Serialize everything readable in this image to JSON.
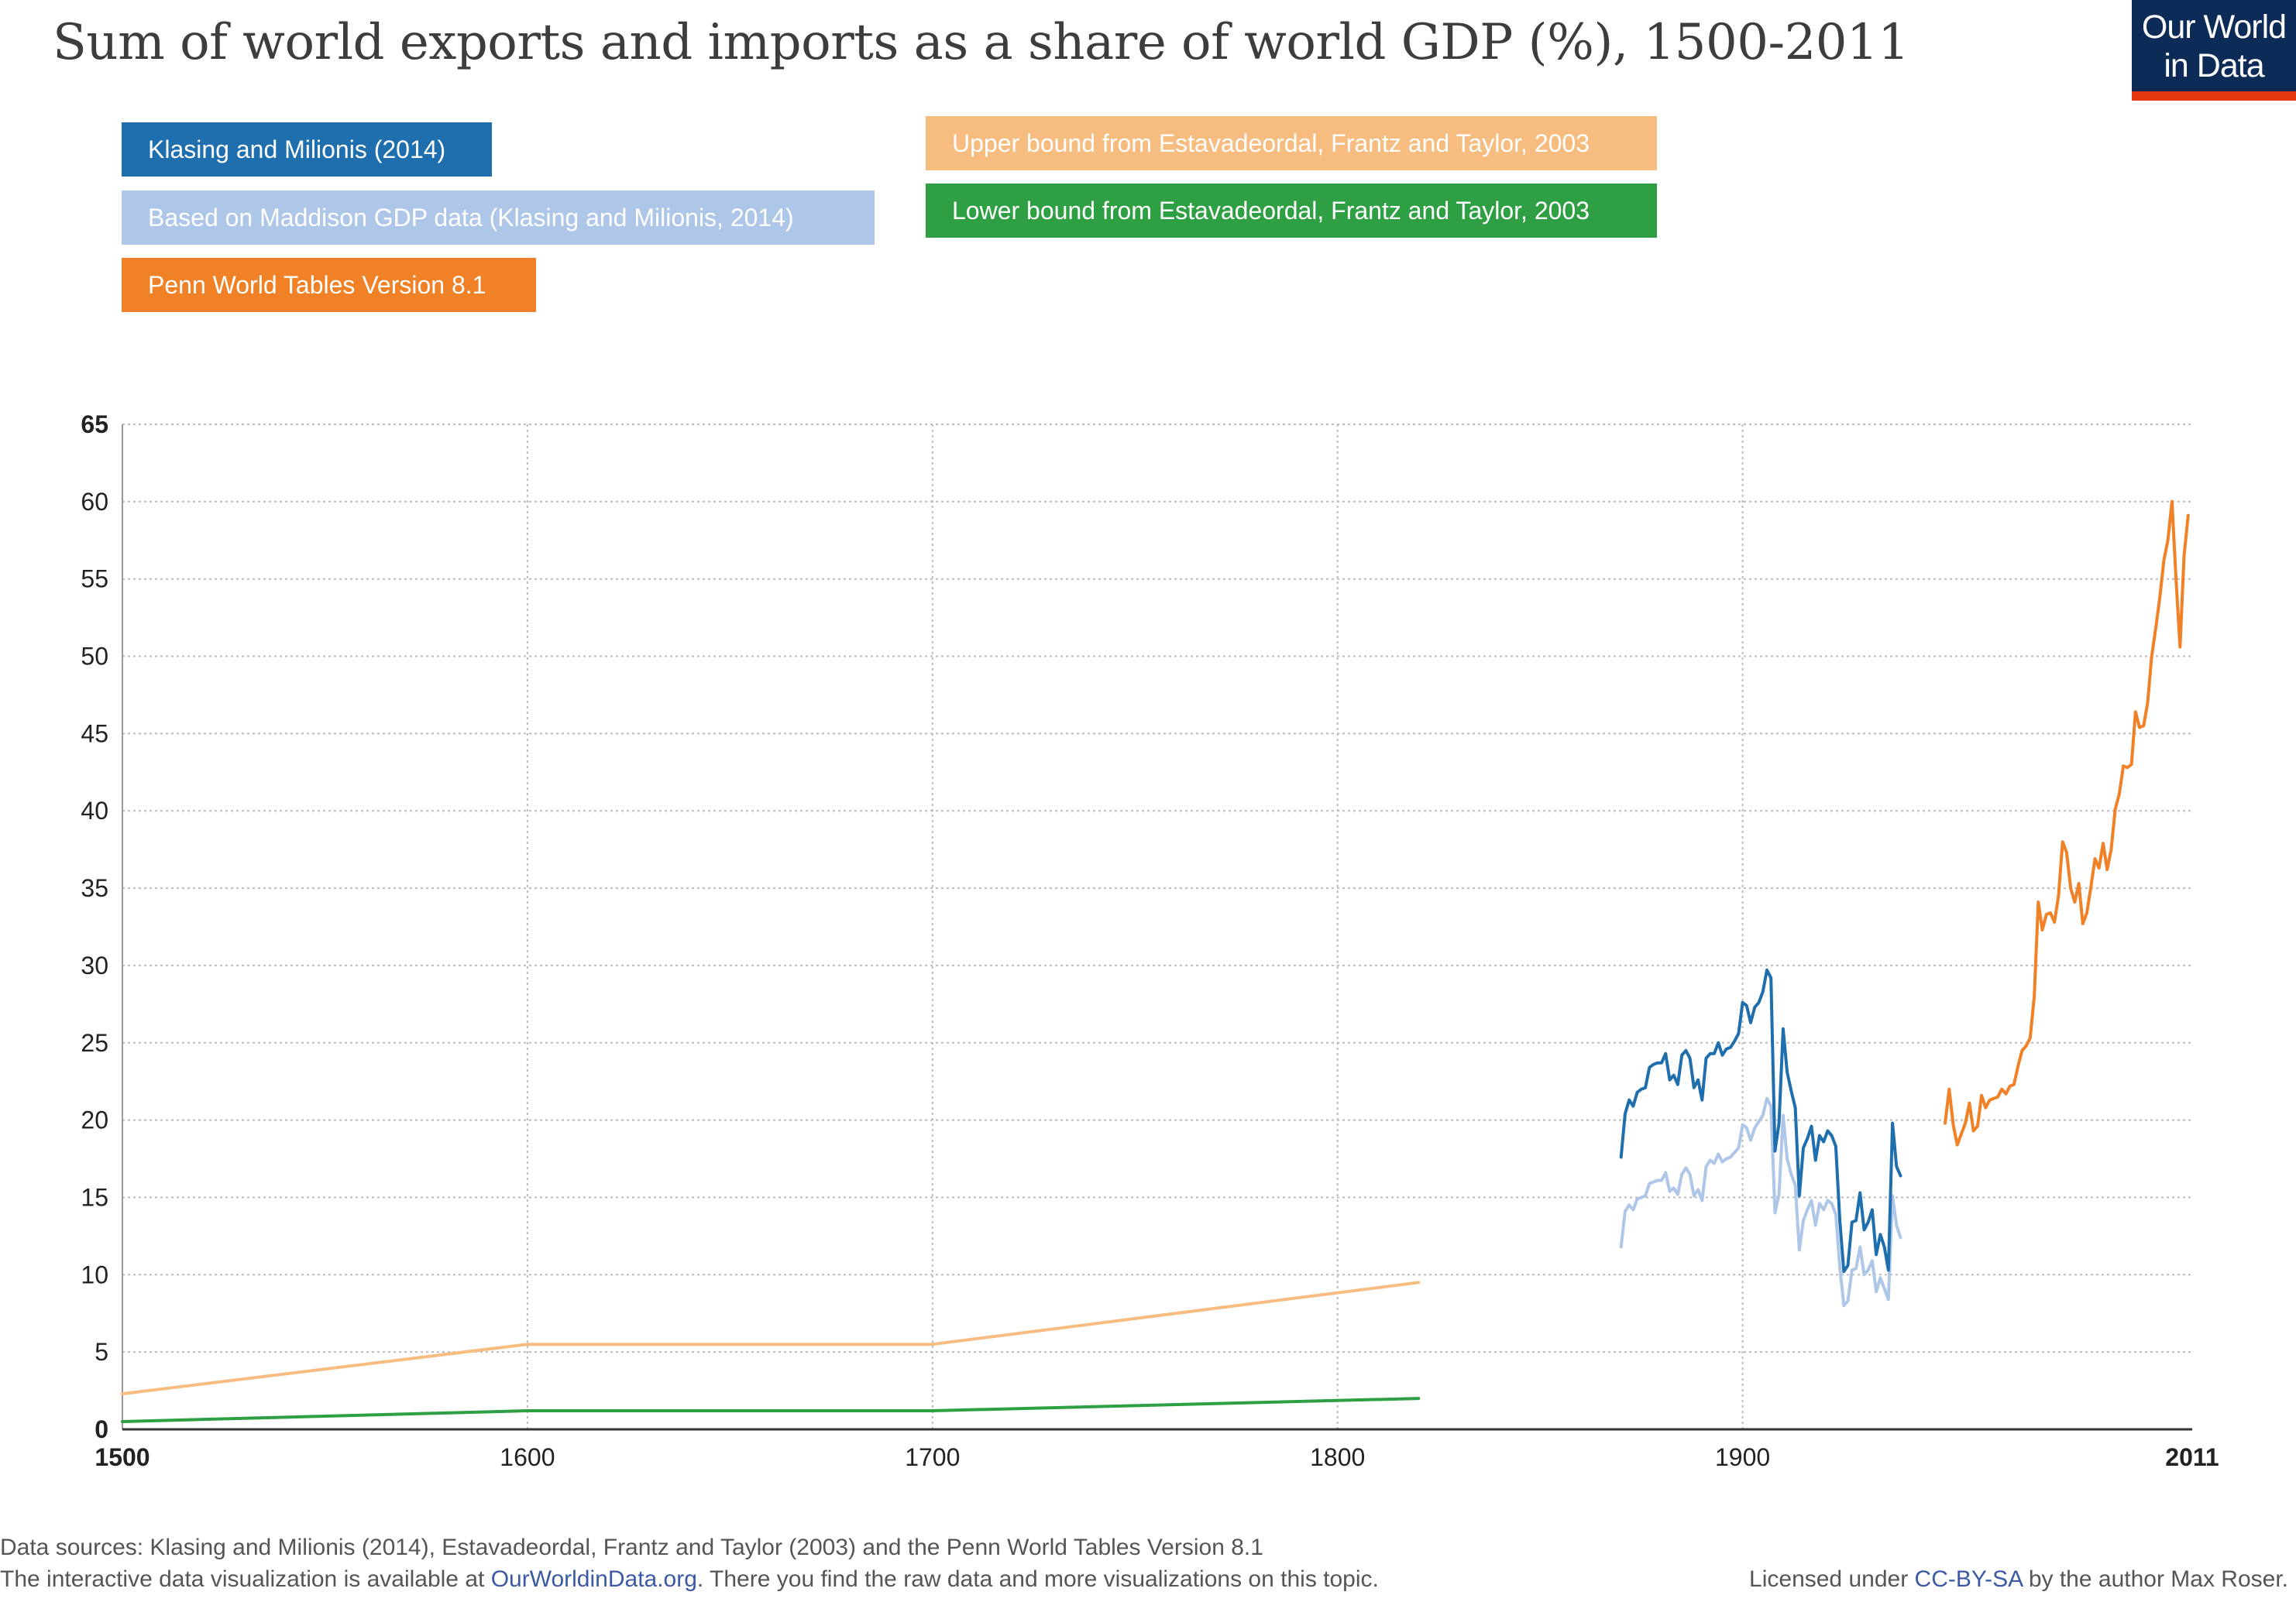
{
  "header": {
    "title": "Sum of world exports and imports  as a share of world GDP (%), 1500-2011",
    "logo_line1": "Our World",
    "logo_line2": "in Data"
  },
  "colors": {
    "klasing": "#1f6eae",
    "maddison": "#aec6e8",
    "penn": "#f08127",
    "upper": "#f7bd80",
    "lower": "#2ea043",
    "grid": "#bbbbbb",
    "axis": "#333333"
  },
  "footer": {
    "sources": "Data sources: Klasing and Milionis (2014), Estavadeordal, Frantz and Taylor (2003) and the Penn World Tables Version 8.1",
    "interactive_prefix": "The interactive data visualization is available at ",
    "interactive_link": "OurWorldinData.org",
    "interactive_suffix": ". There you find the raw data and more visualizations on this topic.",
    "license_prefix": "Licensed under ",
    "license_link": "CC-BY-SA",
    "license_suffix": " by the author Max Roser."
  },
  "chart_data": {
    "type": "line",
    "title": "Sum of world exports and imports  as a share of world GDP (%), 1500-2011",
    "xlim": [
      1500,
      2011
    ],
    "ylim": [
      0,
      65
    ],
    "x_ticks": [
      1500,
      1600,
      1700,
      1800,
      1900,
      2011
    ],
    "y_ticks": [
      0,
      5,
      10,
      15,
      20,
      25,
      30,
      35,
      40,
      45,
      50,
      55,
      60,
      65
    ],
    "legend_position": "top-left",
    "series": [
      {
        "name": "Klasing and Milionis (2014)",
        "color_key": "klasing",
        "points": [
          [
            1870,
            17.6
          ],
          [
            1871,
            20.4
          ],
          [
            1872,
            21.3
          ],
          [
            1873,
            20.9
          ],
          [
            1874,
            21.8
          ],
          [
            1875,
            22.0
          ],
          [
            1876,
            22.1
          ],
          [
            1877,
            23.4
          ],
          [
            1878,
            23.6
          ],
          [
            1879,
            23.7
          ],
          [
            1880,
            23.7
          ],
          [
            1881,
            24.3
          ],
          [
            1882,
            22.6
          ],
          [
            1883,
            22.9
          ],
          [
            1884,
            22.3
          ],
          [
            1885,
            24.2
          ],
          [
            1886,
            24.5
          ],
          [
            1887,
            24.0
          ],
          [
            1888,
            22.1
          ],
          [
            1889,
            22.6
          ],
          [
            1890,
            21.3
          ],
          [
            1891,
            24.0
          ],
          [
            1892,
            24.3
          ],
          [
            1893,
            24.3
          ],
          [
            1894,
            25.0
          ],
          [
            1895,
            24.2
          ],
          [
            1896,
            24.6
          ],
          [
            1897,
            24.7
          ],
          [
            1898,
            25.1
          ],
          [
            1899,
            25.6
          ],
          [
            1900,
            27.6
          ],
          [
            1901,
            27.4
          ],
          [
            1902,
            26.3
          ],
          [
            1903,
            27.3
          ],
          [
            1904,
            27.6
          ],
          [
            1905,
            28.3
          ],
          [
            1906,
            29.7
          ],
          [
            1907,
            29.2
          ],
          [
            1908,
            18.0
          ],
          [
            1909,
            19.8
          ],
          [
            1910,
            25.9
          ],
          [
            1911,
            23.1
          ],
          [
            1912,
            21.9
          ],
          [
            1913,
            20.8
          ],
          [
            1914,
            15.1
          ],
          [
            1915,
            18.2
          ],
          [
            1916,
            18.8
          ],
          [
            1917,
            19.6
          ],
          [
            1918,
            17.4
          ],
          [
            1919,
            19.0
          ],
          [
            1920,
            18.6
          ],
          [
            1921,
            19.3
          ],
          [
            1922,
            19.0
          ],
          [
            1923,
            18.3
          ],
          [
            1924,
            13.5
          ],
          [
            1925,
            10.2
          ],
          [
            1926,
            10.6
          ],
          [
            1927,
            13.4
          ],
          [
            1928,
            13.5
          ],
          [
            1929,
            15.3
          ],
          [
            1930,
            12.9
          ],
          [
            1931,
            13.4
          ],
          [
            1932,
            14.2
          ],
          [
            1933,
            11.3
          ],
          [
            1934,
            12.6
          ],
          [
            1935,
            11.8
          ],
          [
            1936,
            10.3
          ],
          [
            1937,
            19.8
          ],
          [
            1938,
            17.0
          ],
          [
            1939,
            16.4
          ]
        ]
      },
      {
        "name": "Based on Maddison GDP data (Klasing and Milionis, 2014)",
        "color_key": "maddison",
        "points": [
          [
            1870,
            11.8
          ],
          [
            1871,
            14.1
          ],
          [
            1872,
            14.5
          ],
          [
            1873,
            14.2
          ],
          [
            1874,
            14.9
          ],
          [
            1875,
            15.0
          ],
          [
            1876,
            15.1
          ],
          [
            1877,
            15.9
          ],
          [
            1878,
            16.0
          ],
          [
            1879,
            16.1
          ],
          [
            1880,
            16.1
          ],
          [
            1881,
            16.6
          ],
          [
            1882,
            15.4
          ],
          [
            1883,
            15.6
          ],
          [
            1884,
            15.2
          ],
          [
            1885,
            16.5
          ],
          [
            1886,
            16.9
          ],
          [
            1887,
            16.5
          ],
          [
            1888,
            15.1
          ],
          [
            1889,
            15.5
          ],
          [
            1890,
            14.8
          ],
          [
            1891,
            17.0
          ],
          [
            1892,
            17.4
          ],
          [
            1893,
            17.2
          ],
          [
            1894,
            17.8
          ],
          [
            1895,
            17.3
          ],
          [
            1896,
            17.5
          ],
          [
            1897,
            17.6
          ],
          [
            1898,
            17.9
          ],
          [
            1899,
            18.2
          ],
          [
            1900,
            19.7
          ],
          [
            1901,
            19.5
          ],
          [
            1902,
            18.7
          ],
          [
            1903,
            19.5
          ],
          [
            1904,
            19.9
          ],
          [
            1905,
            20.3
          ],
          [
            1906,
            21.4
          ],
          [
            1907,
            20.9
          ],
          [
            1908,
            14.0
          ],
          [
            1909,
            15.2
          ],
          [
            1910,
            20.3
          ],
          [
            1911,
            17.5
          ],
          [
            1912,
            16.5
          ],
          [
            1913,
            15.8
          ],
          [
            1914,
            11.6
          ],
          [
            1915,
            13.5
          ],
          [
            1916,
            14.2
          ],
          [
            1917,
            14.8
          ],
          [
            1918,
            13.2
          ],
          [
            1919,
            14.6
          ],
          [
            1920,
            14.2
          ],
          [
            1921,
            14.8
          ],
          [
            1922,
            14.6
          ],
          [
            1923,
            13.9
          ],
          [
            1924,
            10.5
          ],
          [
            1925,
            8.0
          ],
          [
            1926,
            8.3
          ],
          [
            1927,
            10.3
          ],
          [
            1928,
            10.4
          ],
          [
            1929,
            11.8
          ],
          [
            1930,
            10.0
          ],
          [
            1931,
            10.3
          ],
          [
            1932,
            10.9
          ],
          [
            1933,
            8.9
          ],
          [
            1934,
            9.8
          ],
          [
            1935,
            9.1
          ],
          [
            1936,
            8.4
          ],
          [
            1937,
            15.1
          ],
          [
            1938,
            13.2
          ],
          [
            1939,
            12.4
          ]
        ]
      },
      {
        "name": "Penn World Tables Version 8.1",
        "color_key": "penn",
        "points": [
          [
            1950,
            19.8
          ],
          [
            1951,
            22.0
          ],
          [
            1952,
            19.7
          ],
          [
            1953,
            18.4
          ],
          [
            1954,
            19.1
          ],
          [
            1955,
            19.8
          ],
          [
            1956,
            21.1
          ],
          [
            1957,
            19.3
          ],
          [
            1958,
            19.6
          ],
          [
            1959,
            21.6
          ],
          [
            1960,
            20.8
          ],
          [
            1961,
            21.3
          ],
          [
            1962,
            21.4
          ],
          [
            1963,
            21.5
          ],
          [
            1964,
            22.0
          ],
          [
            1965,
            21.7
          ],
          [
            1966,
            22.2
          ],
          [
            1967,
            22.3
          ],
          [
            1968,
            23.5
          ],
          [
            1969,
            24.5
          ],
          [
            1970,
            24.8
          ],
          [
            1971,
            25.3
          ],
          [
            1972,
            28.0
          ],
          [
            1973,
            34.1
          ],
          [
            1974,
            32.3
          ],
          [
            1975,
            33.3
          ],
          [
            1976,
            33.4
          ],
          [
            1977,
            32.8
          ],
          [
            1978,
            34.5
          ],
          [
            1979,
            38.0
          ],
          [
            1980,
            37.3
          ],
          [
            1981,
            35.0
          ],
          [
            1982,
            34.1
          ],
          [
            1983,
            35.3
          ],
          [
            1984,
            32.7
          ],
          [
            1985,
            33.4
          ],
          [
            1986,
            35.1
          ],
          [
            1987,
            36.9
          ],
          [
            1988,
            36.3
          ],
          [
            1989,
            37.9
          ],
          [
            1990,
            36.2
          ],
          [
            1991,
            37.5
          ],
          [
            1992,
            40.1
          ],
          [
            1993,
            41.1
          ],
          [
            1994,
            42.9
          ],
          [
            1995,
            42.8
          ],
          [
            1996,
            43.0
          ],
          [
            1997,
            46.4
          ],
          [
            1998,
            45.4
          ],
          [
            1999,
            45.5
          ],
          [
            2000,
            47.0
          ],
          [
            2001,
            50.0
          ],
          [
            2002,
            51.8
          ],
          [
            2003,
            53.8
          ],
          [
            2004,
            56.2
          ],
          [
            2005,
            57.5
          ],
          [
            2006,
            60.0
          ],
          [
            2007,
            55.0
          ],
          [
            2008,
            50.6
          ],
          [
            2009,
            56.5
          ],
          [
            2010,
            59.1
          ]
        ]
      },
      {
        "name": "Upper bound from Estavadeordal, Frantz and Taylor, 2003",
        "color_key": "upper",
        "points": [
          [
            1500,
            2.3
          ],
          [
            1600,
            5.5
          ],
          [
            1700,
            5.5
          ],
          [
            1820,
            9.5
          ]
        ]
      },
      {
        "name": "Lower bound from Estavadeordal, Frantz and Taylor, 2003",
        "color_key": "lower",
        "points": [
          [
            1500,
            0.5
          ],
          [
            1600,
            1.2
          ],
          [
            1700,
            1.2
          ],
          [
            1820,
            2.0
          ]
        ]
      }
    ]
  }
}
